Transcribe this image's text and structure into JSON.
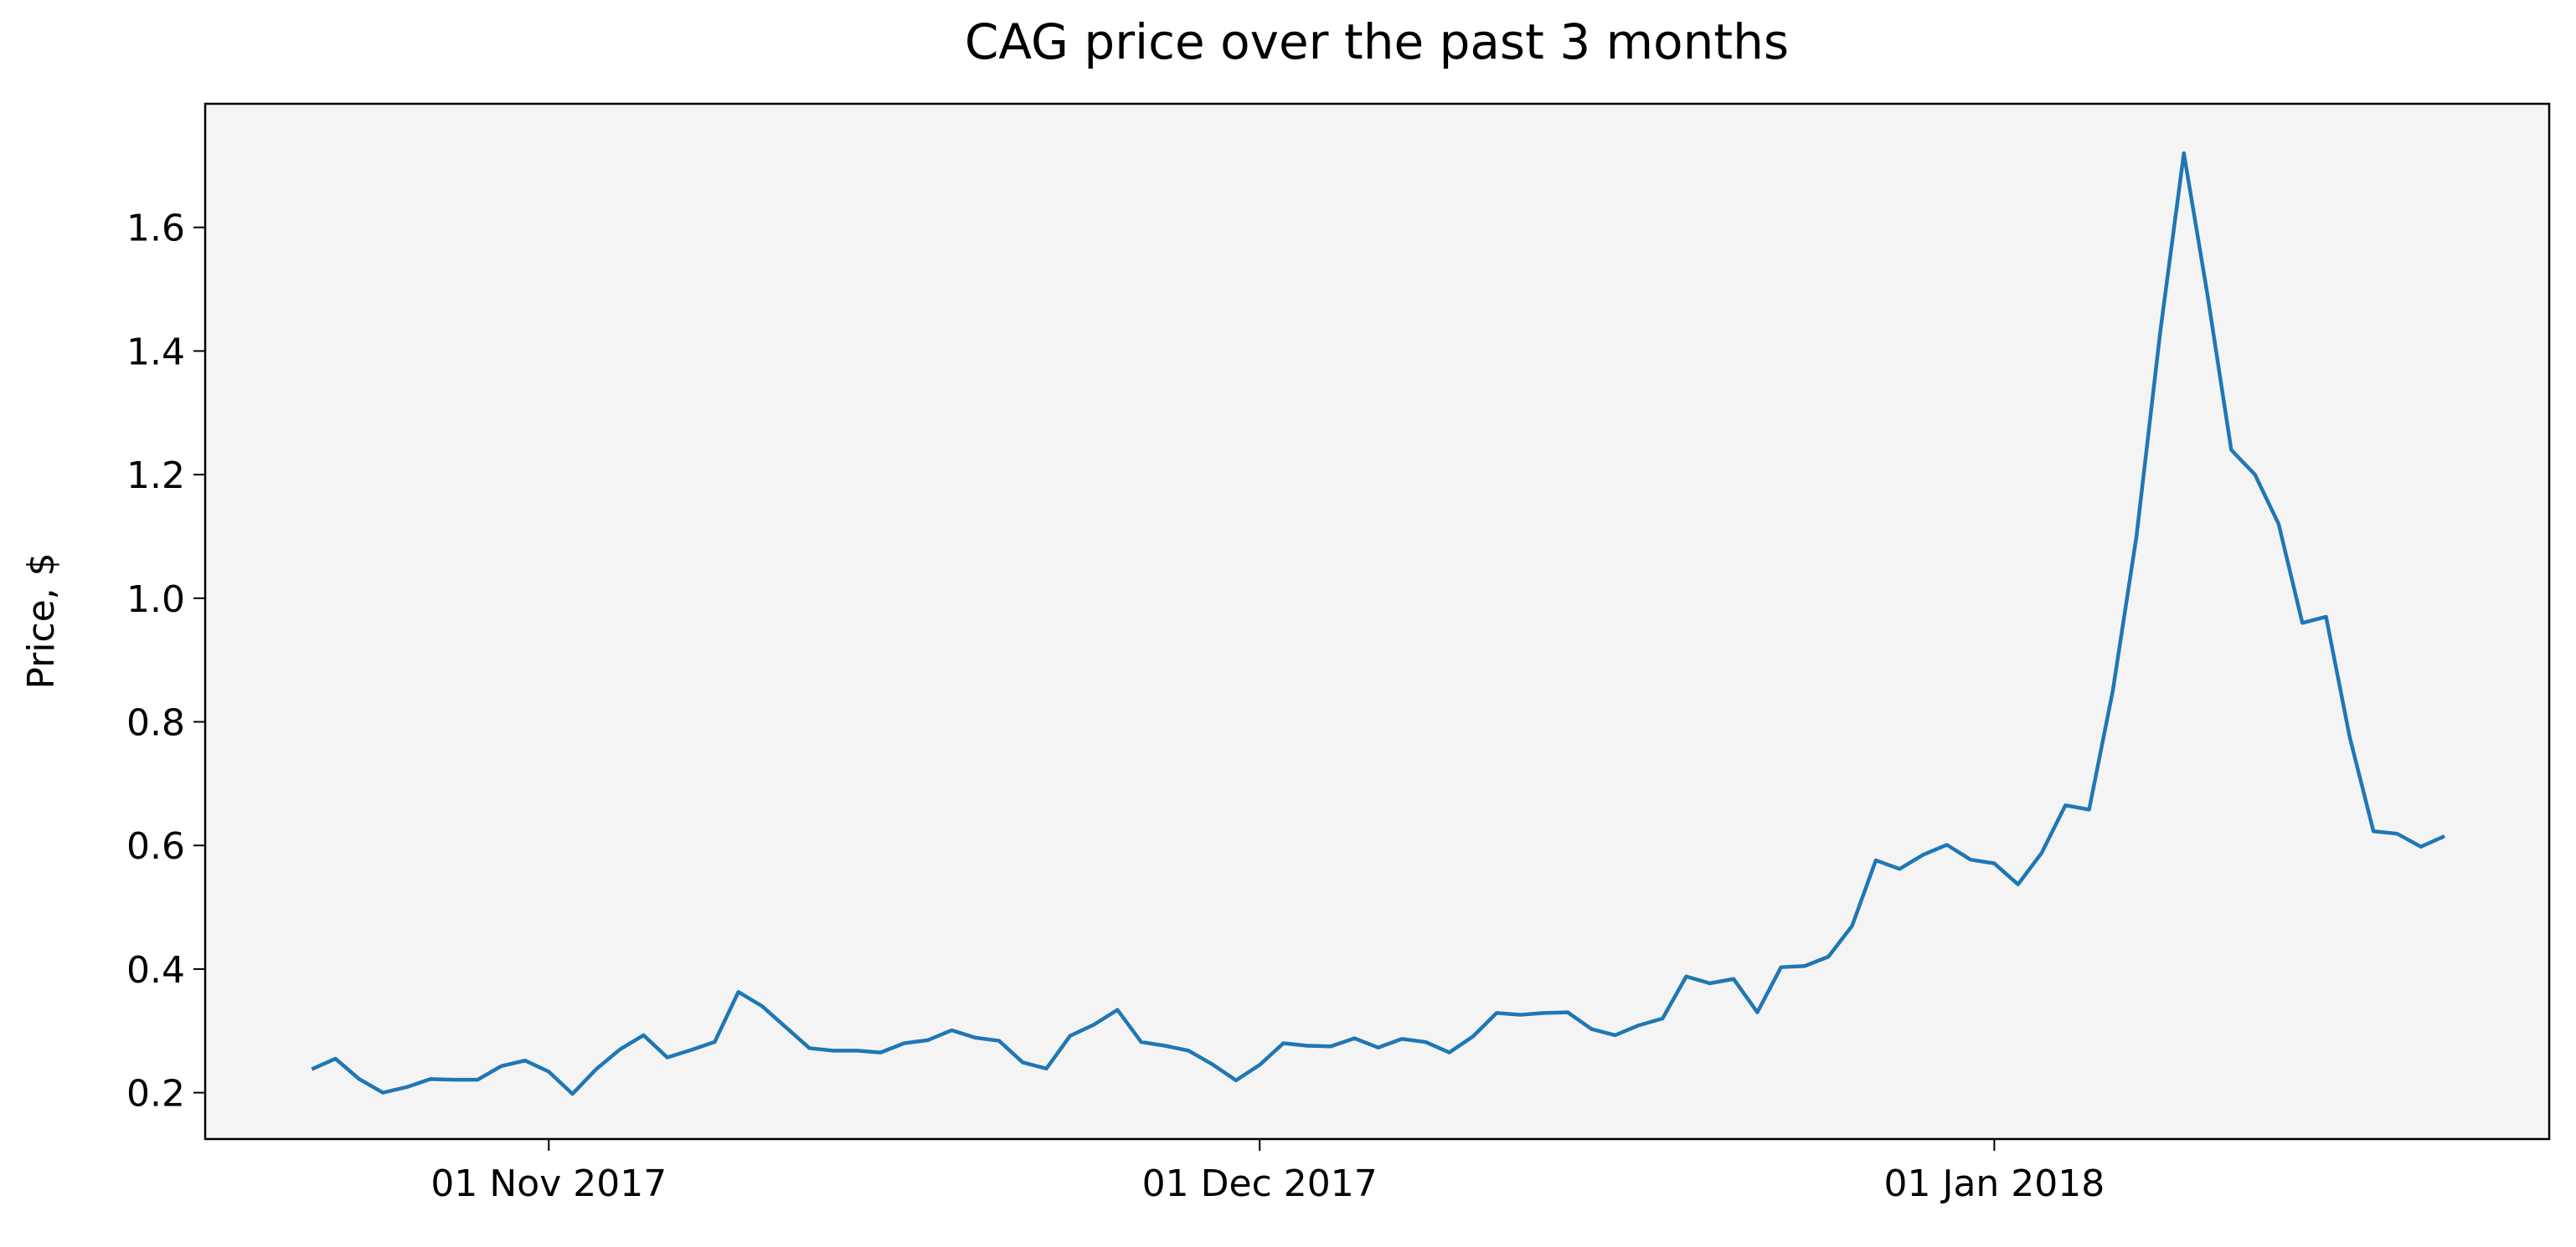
{
  "chart_data": {
    "type": "line",
    "title": "CAG price over the past 3 months",
    "ylabel": "Price, $",
    "x": [
      "2017-10-22",
      "2017-10-23",
      "2017-10-24",
      "2017-10-25",
      "2017-10-26",
      "2017-10-27",
      "2017-10-28",
      "2017-10-29",
      "2017-10-30",
      "2017-10-31",
      "2017-11-01",
      "2017-11-02",
      "2017-11-03",
      "2017-11-04",
      "2017-11-05",
      "2017-11-06",
      "2017-11-07",
      "2017-11-08",
      "2017-11-09",
      "2017-11-10",
      "2017-11-11",
      "2017-11-12",
      "2017-11-13",
      "2017-11-14",
      "2017-11-15",
      "2017-11-16",
      "2017-11-17",
      "2017-11-18",
      "2017-11-19",
      "2017-11-20",
      "2017-11-21",
      "2017-11-22",
      "2017-11-23",
      "2017-11-24",
      "2017-11-25",
      "2017-11-26",
      "2017-11-27",
      "2017-11-28",
      "2017-11-29",
      "2017-11-30",
      "2017-12-01",
      "2017-12-02",
      "2017-12-03",
      "2017-12-04",
      "2017-12-05",
      "2017-12-06",
      "2017-12-07",
      "2017-12-08",
      "2017-12-09",
      "2017-12-10",
      "2017-12-11",
      "2017-12-12",
      "2017-12-13",
      "2017-12-14",
      "2017-12-15",
      "2017-12-16",
      "2017-12-17",
      "2017-12-18",
      "2017-12-19",
      "2017-12-20",
      "2017-12-21",
      "2017-12-22",
      "2017-12-23",
      "2017-12-24",
      "2017-12-25",
      "2017-12-26",
      "2017-12-27",
      "2017-12-28",
      "2017-12-29",
      "2017-12-30",
      "2017-12-31",
      "2018-01-01",
      "2018-01-02",
      "2018-01-03",
      "2018-01-04",
      "2018-01-05",
      "2018-01-06",
      "2018-01-07",
      "2018-01-08",
      "2018-01-09",
      "2018-01-10",
      "2018-01-11",
      "2018-01-12",
      "2018-01-13",
      "2018-01-14",
      "2018-01-15",
      "2018-01-16",
      "2018-01-17",
      "2018-01-18",
      "2018-01-19",
      "2018-01-20"
    ],
    "series": [
      {
        "color": "#1f77b4",
        "values": [
          0.238,
          0.255,
          0.222,
          0.2,
          0.209,
          0.222,
          0.221,
          0.221,
          0.243,
          0.252,
          0.234,
          0.198,
          0.238,
          0.27,
          0.293,
          0.257,
          0.269,
          0.282,
          0.363,
          0.34,
          0.306,
          0.272,
          0.268,
          0.268,
          0.265,
          0.28,
          0.285,
          0.301,
          0.289,
          0.284,
          0.249,
          0.239,
          0.292,
          0.31,
          0.334,
          0.282,
          0.276,
          0.268,
          0.246,
          0.22,
          0.245,
          0.28,
          0.276,
          0.275,
          0.288,
          0.273,
          0.287,
          0.282,
          0.265,
          0.291,
          0.329,
          0.326,
          0.329,
          0.33,
          0.303,
          0.293,
          0.309,
          0.32,
          0.388,
          0.377,
          0.384,
          0.33,
          0.403,
          0.405,
          0.42,
          0.47,
          0.576,
          0.562,
          0.585,
          0.601,
          0.577,
          0.571,
          0.537,
          0.588,
          0.665,
          0.658,
          0.85,
          1.1,
          1.43,
          1.72,
          1.49,
          1.24,
          1.2,
          1.12,
          0.96,
          0.97,
          0.775,
          0.623,
          0.619,
          0.598,
          0.615
        ]
      }
    ],
    "xlim": [
      "2017-10-17T12:00Z",
      "2018-01-24T10:00Z"
    ],
    "xticks": [
      {
        "value": "2017-11-01",
        "label": "01 Nov 2017"
      },
      {
        "value": "2017-12-01",
        "label": "01 Dec 2017"
      },
      {
        "value": "2018-01-01",
        "label": "01 Jan 2018"
      }
    ],
    "ylim": [
      0.125,
      1.8
    ],
    "yticks": [
      0.2,
      0.4,
      0.6,
      0.8,
      {
        "value": 1,
        "label": "1.0"
      },
      1.2,
      1.4,
      1.6
    ],
    "grid": false,
    "background": "#f4f4f4"
  }
}
